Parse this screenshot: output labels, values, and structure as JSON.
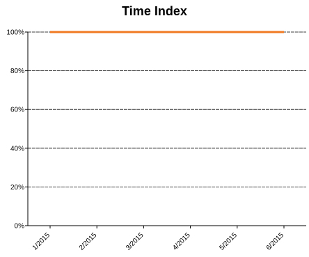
{
  "chart_data": {
    "type": "line",
    "title": "Time Index",
    "xlabel": "",
    "ylabel": "",
    "categories": [
      "1/2015",
      "2/2015",
      "3/2015",
      "4/2015",
      "5/2015",
      "6/2015"
    ],
    "series": [
      {
        "values": [
          100,
          100,
          100,
          100,
          100,
          100
        ],
        "color": "#f07a22"
      }
    ],
    "ylim": [
      0,
      100
    ],
    "yticks": [
      0,
      20,
      40,
      60,
      80,
      100
    ],
    "ytick_labels": [
      "0%",
      "20%",
      "40%",
      "60%",
      "80%",
      "100%"
    ],
    "grid": true,
    "legend": "none"
  }
}
